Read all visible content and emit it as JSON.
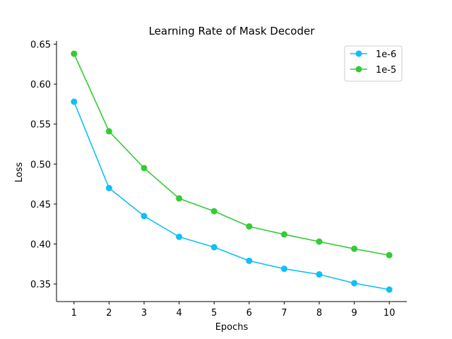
{
  "chart_data": {
    "type": "line",
    "title": "Learning Rate of Mask Decoder",
    "xlabel": "Epochs",
    "ylabel": "Loss",
    "x": [
      1,
      2,
      3,
      4,
      5,
      6,
      7,
      8,
      9,
      10
    ],
    "xticks": [
      "1",
      "2",
      "3",
      "4",
      "5",
      "6",
      "7",
      "8",
      "9",
      "10"
    ],
    "yticks": [
      "0.35",
      "0.40",
      "0.45",
      "0.50",
      "0.55",
      "0.60",
      "0.65"
    ],
    "xlim": [
      0.5,
      10.5
    ],
    "ylim": [
      0.328,
      0.654
    ],
    "grid": false,
    "legend_position": "top-right",
    "series": [
      {
        "name": "1e-6",
        "color": "#10bff3",
        "marker": "circle",
        "values": [
          0.578,
          0.47,
          0.435,
          0.409,
          0.396,
          0.379,
          0.369,
          0.362,
          0.351,
          0.343
        ]
      },
      {
        "name": "1e-5",
        "color": "#33cc33",
        "marker": "circle",
        "values": [
          0.638,
          0.541,
          0.495,
          0.457,
          0.441,
          0.422,
          0.412,
          0.403,
          0.394,
          0.386
        ]
      }
    ]
  }
}
